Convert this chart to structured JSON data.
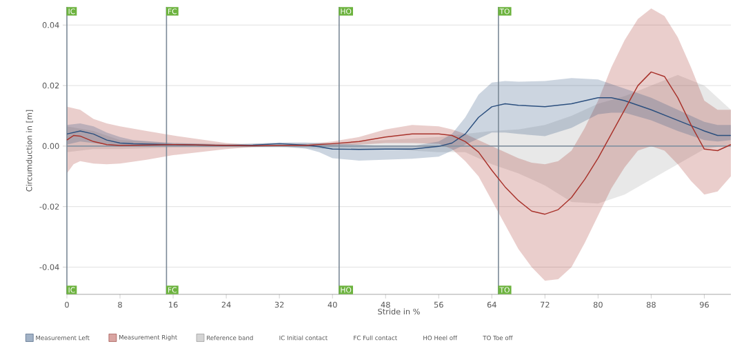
{
  "chart_data": {
    "type": "line",
    "xlabel": "Stride in %",
    "ylabel": "Circumduction in [m]",
    "xlim": [
      0,
      100
    ],
    "ylim": [
      -0.049,
      0.046
    ],
    "xticks": [
      0,
      8,
      16,
      24,
      32,
      40,
      48,
      56,
      64,
      72,
      80,
      88,
      96
    ],
    "yticks": [
      {
        "value": -0.04,
        "label": "-0.04"
      },
      {
        "value": -0.02,
        "label": "-0.02"
      },
      {
        "value": 0,
        "label": "0.00"
      },
      {
        "value": 0.02,
        "label": "0.02"
      },
      {
        "value": 0.04,
        "label": "0.04"
      }
    ],
    "grid": "y",
    "legend": "bottom",
    "series": [
      {
        "name": "Measurement Left",
        "color": "#2b4f7e",
        "x": [
          0,
          2,
          4,
          6,
          8,
          10,
          16,
          24,
          28,
          32,
          36,
          38,
          40,
          44,
          48,
          52,
          56,
          58,
          60,
          62,
          64,
          66,
          68,
          72,
          76,
          80,
          82,
          84,
          88,
          92,
          96,
          98,
          100
        ],
        "values": [
          0.004,
          0.005,
          0.004,
          0.002,
          0.001,
          0.0008,
          0.0005,
          0.0002,
          0.0003,
          0.0008,
          0.0003,
          -0.0002,
          -0.001,
          -0.0011,
          -0.001,
          -0.001,
          -0.0001,
          0.001,
          0.004,
          0.0095,
          0.013,
          0.014,
          0.0135,
          0.013,
          0.014,
          0.016,
          0.016,
          0.015,
          0.012,
          0.0085,
          0.005,
          0.0035,
          0.0035
        ],
        "upper": [
          0.007,
          0.0075,
          0.0065,
          0.0045,
          0.003,
          0.002,
          0.001,
          0.0005,
          0.0008,
          0.0012,
          0.0012,
          0.001,
          0.0008,
          0.0005,
          0.0,
          0.0,
          0.0015,
          0.004,
          0.0095,
          0.017,
          0.021,
          0.0215,
          0.0213,
          0.0215,
          0.0225,
          0.022,
          0.0205,
          0.019,
          0.016,
          0.012,
          0.008,
          0.007,
          0.007
        ],
        "lower": [
          0.0005,
          0.0015,
          0.001,
          0.0005,
          0.0,
          0.0,
          0.0,
          0.0,
          -0.0002,
          0.0,
          -0.0008,
          -0.002,
          -0.004,
          -0.0048,
          -0.0045,
          -0.0042,
          -0.0035,
          -0.0015,
          0.0005,
          0.0025,
          0.0045,
          0.0045,
          0.004,
          0.0033,
          0.006,
          0.0105,
          0.011,
          0.011,
          0.0085,
          0.005,
          0.002,
          0.0015,
          0.002
        ]
      },
      {
        "name": "Measurement Right",
        "color": "#a8322b",
        "x": [
          0,
          1,
          2,
          4,
          6,
          8,
          12,
          16,
          24,
          28,
          32,
          36,
          40,
          44,
          48,
          52,
          56,
          58,
          60,
          62,
          64,
          66,
          68,
          70,
          72,
          74,
          76,
          78,
          80,
          82,
          84,
          86,
          88,
          90,
          92,
          94,
          96,
          98,
          100
        ],
        "values": [
          0.002,
          0.0035,
          0.0033,
          0.0015,
          0.0005,
          0.0002,
          0.0003,
          0.0005,
          0.0002,
          0.0001,
          0.0002,
          0.0002,
          0.0008,
          0.0015,
          0.003,
          0.004,
          0.004,
          0.0035,
          0.0015,
          -0.002,
          -0.008,
          -0.0135,
          -0.018,
          -0.0215,
          -0.0225,
          -0.021,
          -0.017,
          -0.011,
          -0.004,
          0.004,
          0.012,
          0.02,
          0.0245,
          0.023,
          0.016,
          0.007,
          -0.001,
          -0.0015,
          0.0005
        ],
        "upper": [
          0.013,
          0.0125,
          0.012,
          0.009,
          0.0075,
          0.0065,
          0.005,
          0.0035,
          0.001,
          0.0004,
          0.0003,
          0.0006,
          0.0015,
          0.003,
          0.0055,
          0.007,
          0.0065,
          0.0055,
          0.004,
          0.002,
          0.0,
          -0.002,
          -0.004,
          -0.0055,
          -0.006,
          -0.005,
          -0.0015,
          0.006,
          0.015,
          0.026,
          0.035,
          0.042,
          0.0455,
          0.043,
          0.036,
          0.026,
          0.015,
          0.012,
          0.012
        ],
        "lower": [
          -0.009,
          -0.006,
          -0.005,
          -0.0058,
          -0.006,
          -0.0058,
          -0.0045,
          -0.003,
          -0.001,
          -0.0003,
          -0.0001,
          -0.0001,
          0.0002,
          0.0005,
          0.001,
          0.001,
          0.0008,
          -0.001,
          -0.005,
          -0.01,
          -0.018,
          -0.026,
          -0.034,
          -0.04,
          -0.0445,
          -0.044,
          -0.04,
          -0.032,
          -0.023,
          -0.014,
          -0.007,
          -0.0015,
          0.0,
          -0.0015,
          -0.006,
          -0.0115,
          -0.016,
          -0.015,
          -0.01
        ]
      },
      {
        "name": "Reference band",
        "color": "#9e9e9e",
        "x": [
          0,
          4,
          8,
          16,
          24,
          32,
          40,
          48,
          56,
          60,
          64,
          68,
          72,
          76,
          80,
          84,
          88,
          92,
          96,
          100
        ],
        "values": [
          null,
          null,
          null,
          null,
          null,
          null,
          null,
          null,
          null,
          null,
          null,
          null,
          null,
          null,
          null,
          null,
          null,
          null,
          null,
          null
        ],
        "upper": [
          0.0065,
          0.005,
          0.002,
          0.001,
          0.0008,
          0.001,
          0.001,
          0.002,
          0.003,
          0.004,
          0.005,
          0.0055,
          0.007,
          0.01,
          0.014,
          0.0165,
          0.02,
          0.0235,
          0.02,
          0.012
        ],
        "lower": [
          -0.002,
          -0.001,
          -0.001,
          -0.0005,
          -0.0004,
          -0.0005,
          -0.001,
          -0.001,
          -0.002,
          -0.002,
          -0.006,
          -0.009,
          -0.013,
          -0.0185,
          -0.019,
          -0.016,
          -0.011,
          -0.006,
          -0.001,
          0.0005
        ]
      }
    ],
    "ref_lines": [
      {
        "axis": "y",
        "value": 0,
        "color": "#8795a3"
      },
      {
        "axis": "x",
        "value": 0,
        "label": "IC",
        "color": "#7a8896"
      },
      {
        "axis": "x",
        "value": 15,
        "label": "FC",
        "color": "#7a8896"
      },
      {
        "axis": "x",
        "value": 41,
        "label": "HO",
        "color": "#7a8896"
      },
      {
        "axis": "x",
        "value": 65,
        "label": "TO",
        "color": "#7a8896"
      }
    ],
    "annotations": [
      "IC Initial contact",
      "FC Full contact",
      "HO Heel off",
      "TO Toe off"
    ]
  }
}
